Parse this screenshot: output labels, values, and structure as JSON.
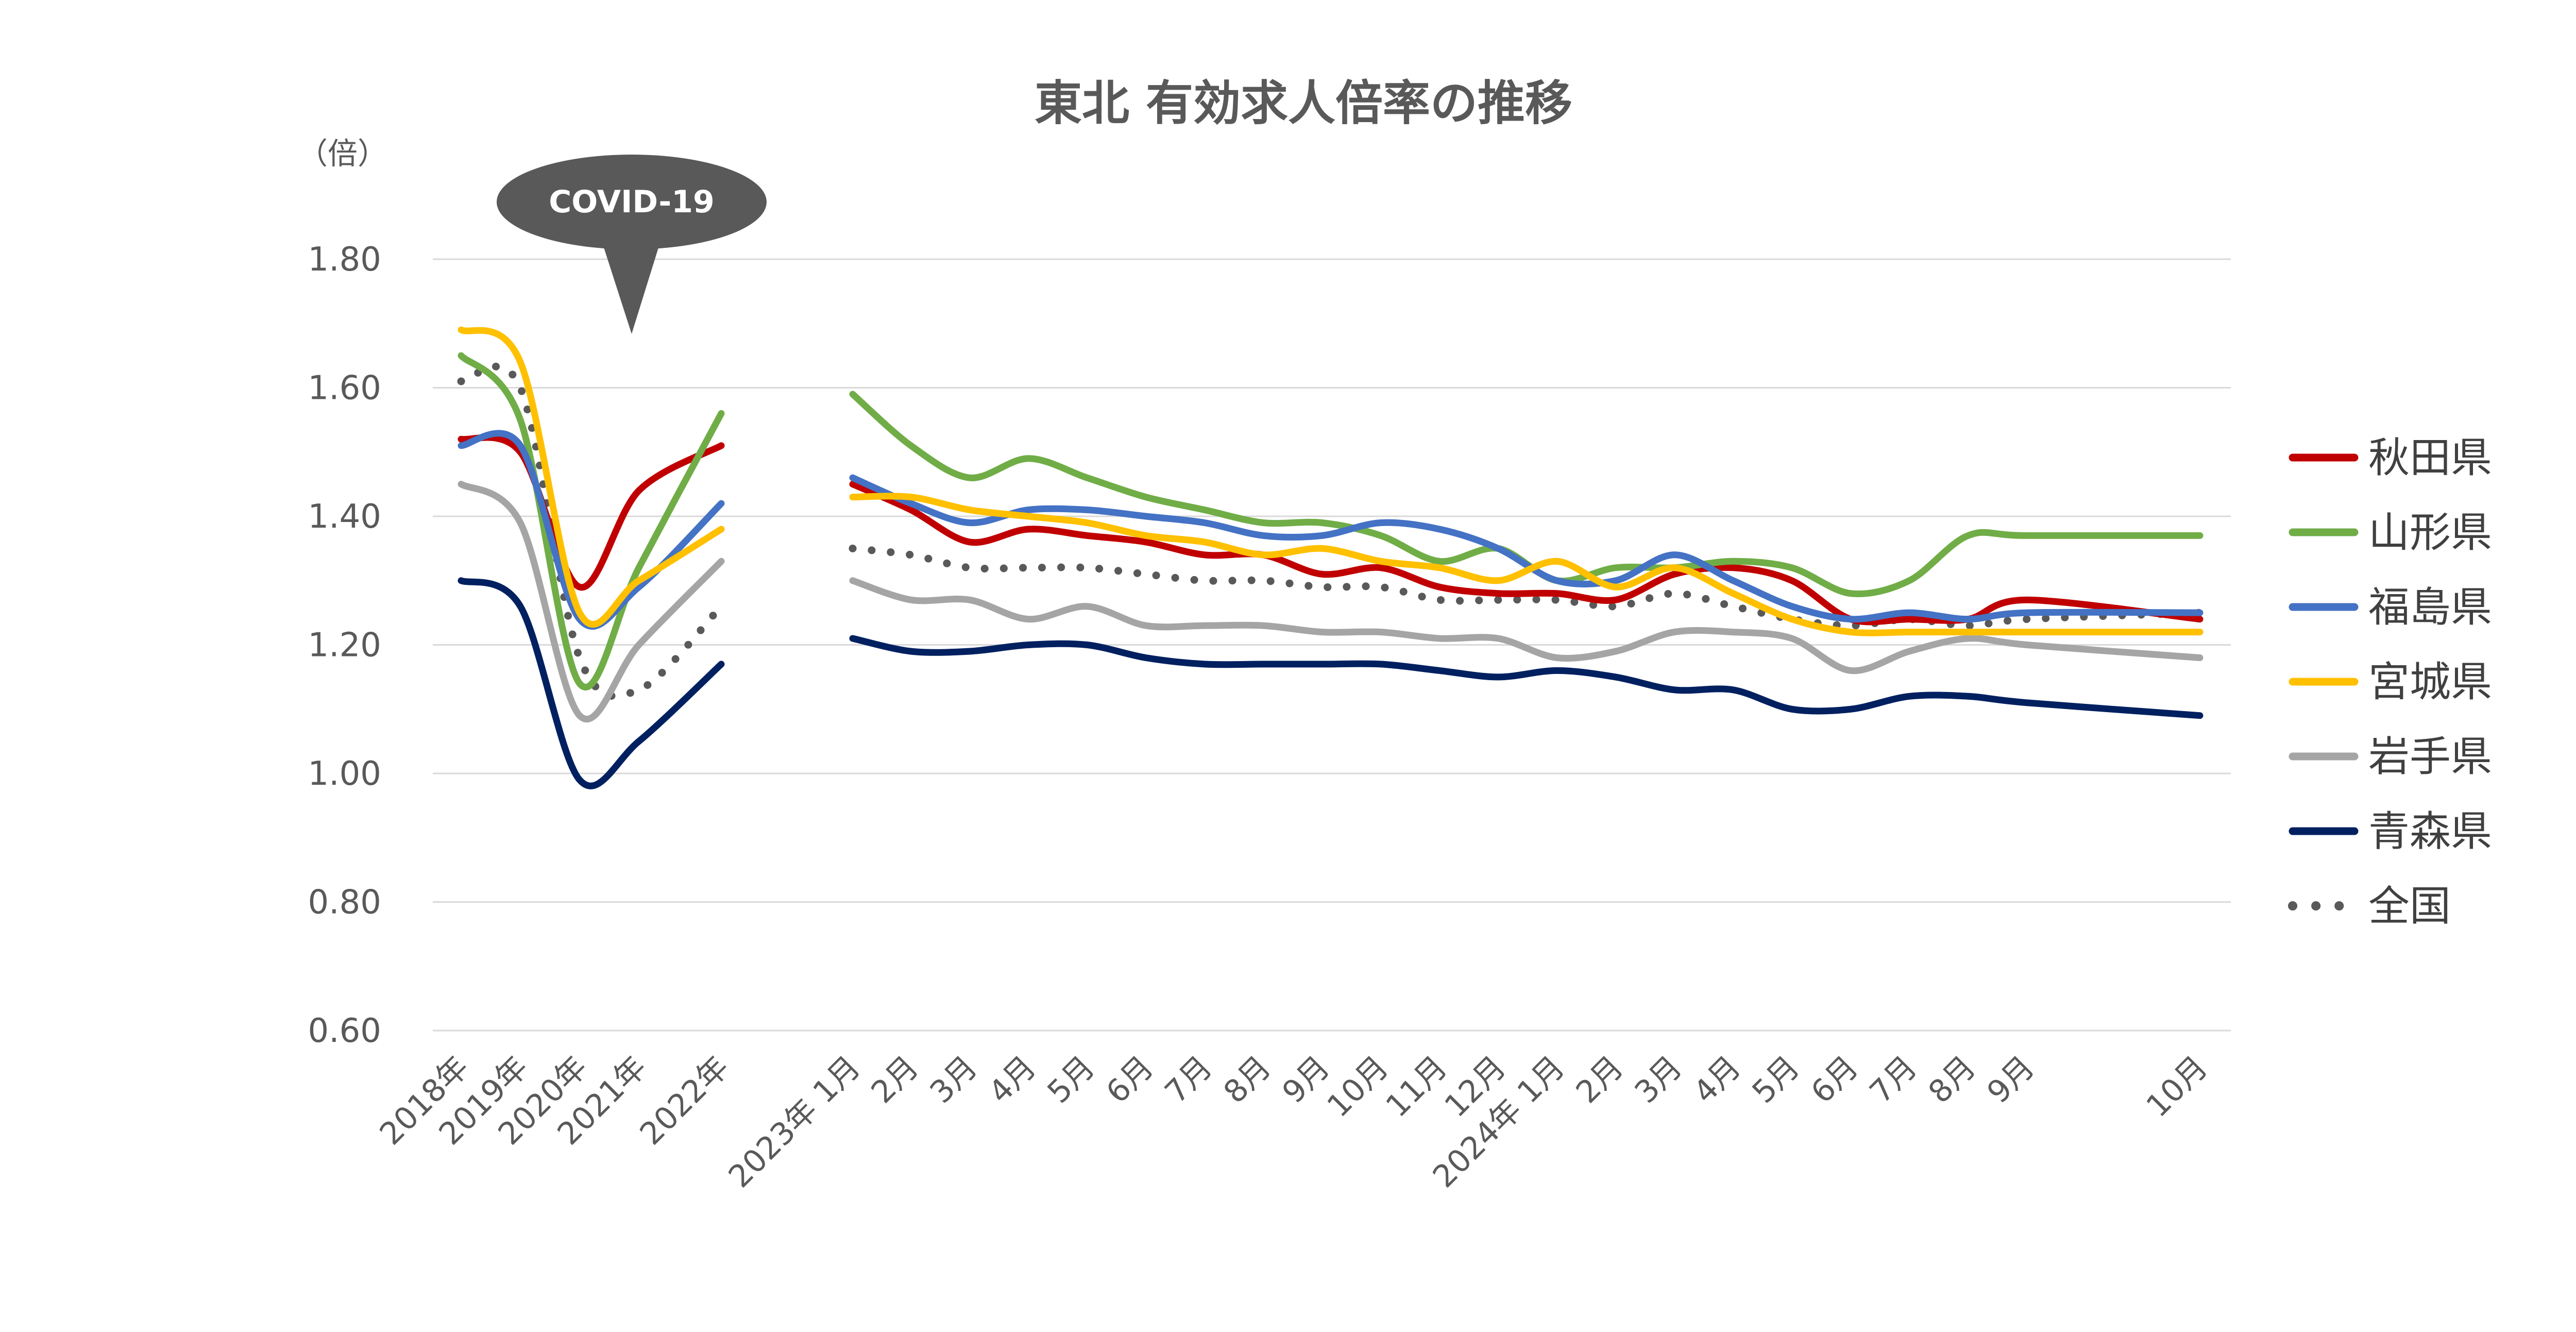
{
  "chart_data": {
    "type": "line",
    "title": "東北 有効求人倍率の推移",
    "unit_label": "（倍）",
    "annotation": "COVID-19",
    "ylim": [
      0.6,
      1.8
    ],
    "yticks": [
      "0.60",
      "0.80",
      "1.00",
      "1.20",
      "1.40",
      "1.60",
      "1.80"
    ],
    "grid": true,
    "legend_position": "right",
    "categories": [
      "2018年",
      "2019年",
      "2020年",
      "2021年",
      "2022年",
      "2023年 1月",
      "2月",
      "3月",
      "4月",
      "5月",
      "6月",
      "7月",
      "8月",
      "9月",
      "10月",
      "11月",
      "12月",
      "2024年 1月",
      "2月",
      "3月",
      "4月",
      "5月",
      "6月",
      "7月",
      "8月",
      "9月",
      "10月"
    ],
    "series": [
      {
        "name": "秋田県",
        "color": "#c00000",
        "style": "solid",
        "values": [
          1.52,
          1.5,
          1.29,
          1.44,
          1.51,
          1.45,
          1.41,
          1.36,
          1.38,
          1.37,
          1.36,
          1.34,
          1.34,
          1.31,
          1.32,
          1.29,
          1.28,
          1.28,
          1.27,
          1.31,
          1.32,
          1.3,
          1.24,
          1.24,
          1.24,
          1.27,
          1.24
        ]
      },
      {
        "name": "山形県",
        "color": "#70ad47",
        "style": "solid",
        "values": [
          1.65,
          1.55,
          1.14,
          1.32,
          1.56,
          1.59,
          1.51,
          1.46,
          1.49,
          1.46,
          1.43,
          1.41,
          1.39,
          1.39,
          1.37,
          1.33,
          1.35,
          1.3,
          1.32,
          1.32,
          1.33,
          1.32,
          1.28,
          1.3,
          1.37,
          1.37,
          1.37
        ]
      },
      {
        "name": "福島県",
        "color": "#4472c4",
        "style": "solid",
        "values": [
          1.51,
          1.51,
          1.24,
          1.29,
          1.42,
          1.46,
          1.42,
          1.39,
          1.41,
          1.41,
          1.4,
          1.39,
          1.37,
          1.37,
          1.39,
          1.38,
          1.35,
          1.3,
          1.3,
          1.34,
          1.3,
          1.26,
          1.24,
          1.25,
          1.24,
          1.25,
          1.25
        ]
      },
      {
        "name": "宮城県",
        "color": "#ffc000",
        "style": "solid",
        "values": [
          1.69,
          1.64,
          1.25,
          1.3,
          1.38,
          1.43,
          1.43,
          1.41,
          1.4,
          1.39,
          1.37,
          1.36,
          1.34,
          1.35,
          1.33,
          1.32,
          1.3,
          1.33,
          1.29,
          1.32,
          1.28,
          1.24,
          1.22,
          1.22,
          1.22,
          1.22,
          1.22
        ]
      },
      {
        "name": "岩手県",
        "color": "#a5a5a5",
        "style": "solid",
        "values": [
          1.45,
          1.39,
          1.09,
          1.2,
          1.33,
          1.3,
          1.27,
          1.27,
          1.24,
          1.26,
          1.23,
          1.23,
          1.23,
          1.22,
          1.22,
          1.21,
          1.21,
          1.18,
          1.19,
          1.22,
          1.22,
          1.21,
          1.16,
          1.19,
          1.21,
          1.2,
          1.18
        ]
      },
      {
        "name": "青森県",
        "color": "#002060",
        "style": "solid",
        "values": [
          1.3,
          1.26,
          0.99,
          1.05,
          1.17,
          1.21,
          1.19,
          1.19,
          1.2,
          1.2,
          1.18,
          1.17,
          1.17,
          1.17,
          1.17,
          1.16,
          1.15,
          1.16,
          1.15,
          1.13,
          1.13,
          1.1,
          1.1,
          1.12,
          1.12,
          1.11,
          1.09
        ]
      },
      {
        "name": "全国",
        "color": "#595959",
        "style": "dotted",
        "values": [
          1.61,
          1.6,
          1.18,
          1.13,
          1.26,
          1.35,
          1.34,
          1.32,
          1.32,
          1.32,
          1.31,
          1.3,
          1.3,
          1.29,
          1.29,
          1.27,
          1.27,
          1.27,
          1.26,
          1.28,
          1.26,
          1.24,
          1.23,
          1.24,
          1.23,
          1.24,
          1.25
        ]
      }
    ]
  }
}
